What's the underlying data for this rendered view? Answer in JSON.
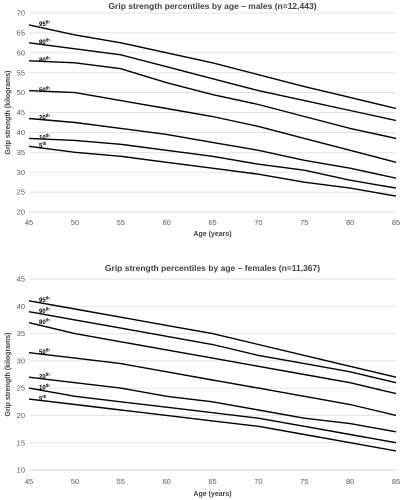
{
  "chart_data": [
    {
      "type": "line",
      "title": "Grip strength percentiles by age – males (n=12,443)",
      "xlabel": "Age (years)",
      "ylabel": "Grip strength (kilograms)",
      "xlim": [
        45,
        85
      ],
      "ylim": [
        20,
        70
      ],
      "xticks": [
        "45",
        "50",
        "55",
        "60",
        "65",
        "70",
        "75",
        "80",
        "85"
      ],
      "yticks": [
        "20",
        "25",
        "30",
        "35",
        "40",
        "45",
        "50",
        "55",
        "60",
        "65",
        "70"
      ],
      "grid": "horizontal",
      "series": [
        {
          "name": "95",
          "sup": "th",
          "x": [
            45,
            50,
            55,
            60,
            65,
            70,
            75,
            80,
            85
          ],
          "values": [
            67,
            64.5,
            62.5,
            60,
            57.5,
            54.5,
            51.5,
            48.8,
            46
          ]
        },
        {
          "name": "90",
          "sup": "th",
          "x": [
            45,
            50,
            55,
            60,
            65,
            70,
            75,
            80,
            85
          ],
          "values": [
            62.5,
            61,
            59.5,
            56.5,
            53.5,
            50.5,
            48,
            45.5,
            43
          ]
        },
        {
          "name": "80",
          "sup": "th",
          "x": [
            45,
            50,
            55,
            60,
            65,
            70,
            75,
            80,
            85
          ],
          "values": [
            58,
            57.5,
            56,
            52.5,
            49.5,
            47,
            44,
            41,
            38.5
          ]
        },
        {
          "name": "50",
          "sup": "th",
          "x": [
            45,
            50,
            55,
            60,
            65,
            70,
            75,
            80,
            85
          ],
          "values": [
            50.5,
            50,
            48,
            46,
            44,
            41.5,
            38.5,
            35.5,
            32.5
          ]
        },
        {
          "name": "20",
          "sup": "th",
          "x": [
            45,
            50,
            55,
            60,
            65,
            70,
            75,
            80,
            85
          ],
          "values": [
            43.5,
            42.5,
            41,
            39.5,
            37.5,
            35.5,
            33,
            31,
            28.5
          ]
        },
        {
          "name": "10",
          "sup": "th",
          "x": [
            45,
            50,
            55,
            60,
            65,
            70,
            75,
            80,
            85
          ],
          "values": [
            38.5,
            38,
            37,
            35.5,
            34,
            32,
            30.5,
            28,
            26
          ]
        },
        {
          "name": "5",
          "sup": "th",
          "x": [
            45,
            50,
            55,
            60,
            65,
            70,
            75,
            80,
            85
          ],
          "values": [
            36.5,
            35,
            34,
            32.5,
            31,
            29.5,
            27.5,
            26,
            24
          ]
        }
      ]
    },
    {
      "type": "line",
      "title": "Grip strength percentiles by age – females (n=11,367)",
      "xlabel": "Age (years)",
      "ylabel": "Grip strength (kilograms)",
      "xlim": [
        45,
        85
      ],
      "ylim": [
        10,
        45
      ],
      "xticks": [
        "45",
        "50",
        "55",
        "60",
        "65",
        "70",
        "75",
        "80",
        "85"
      ],
      "yticks": [
        "10",
        "15",
        "20",
        "25",
        "30",
        "35",
        "40",
        "45"
      ],
      "grid": "horizontal",
      "series": [
        {
          "name": "95",
          "sup": "th",
          "x": [
            45,
            50,
            55,
            60,
            65,
            70,
            75,
            80,
            85
          ],
          "values": [
            41,
            39.5,
            38,
            36.5,
            35,
            33,
            31,
            29,
            27
          ]
        },
        {
          "name": "90",
          "sup": "th",
          "x": [
            45,
            50,
            55,
            60,
            65,
            70,
            75,
            80,
            85
          ],
          "values": [
            39,
            37.5,
            36,
            34.5,
            33,
            31,
            29.5,
            28,
            26
          ]
        },
        {
          "name": "80",
          "sup": "th",
          "x": [
            45,
            50,
            55,
            60,
            65,
            70,
            75,
            80,
            85
          ],
          "values": [
            37,
            35,
            33.5,
            32,
            30.5,
            29,
            27.5,
            26,
            24
          ]
        },
        {
          "name": "50",
          "sup": "th",
          "x": [
            45,
            50,
            55,
            60,
            65,
            70,
            75,
            80,
            85
          ],
          "values": [
            31.5,
            30.5,
            29.5,
            28,
            26.5,
            25,
            23.5,
            22,
            20
          ]
        },
        {
          "name": "20",
          "sup": "th",
          "x": [
            45,
            50,
            55,
            60,
            65,
            70,
            75,
            80,
            85
          ],
          "values": [
            27,
            26,
            25,
            23.5,
            22.5,
            21,
            19.5,
            18.5,
            17
          ]
        },
        {
          "name": "10",
          "sup": "th",
          "x": [
            45,
            50,
            55,
            60,
            65,
            70,
            75,
            80,
            85
          ],
          "values": [
            25,
            23.5,
            22.5,
            21.5,
            20.5,
            19.5,
            18,
            16.5,
            15
          ]
        },
        {
          "name": "5",
          "sup": "th",
          "x": [
            45,
            50,
            55,
            60,
            65,
            70,
            75,
            80,
            85
          ],
          "values": [
            23,
            22,
            21,
            20,
            19,
            18,
            16.5,
            15,
            13.5
          ]
        }
      ]
    }
  ]
}
